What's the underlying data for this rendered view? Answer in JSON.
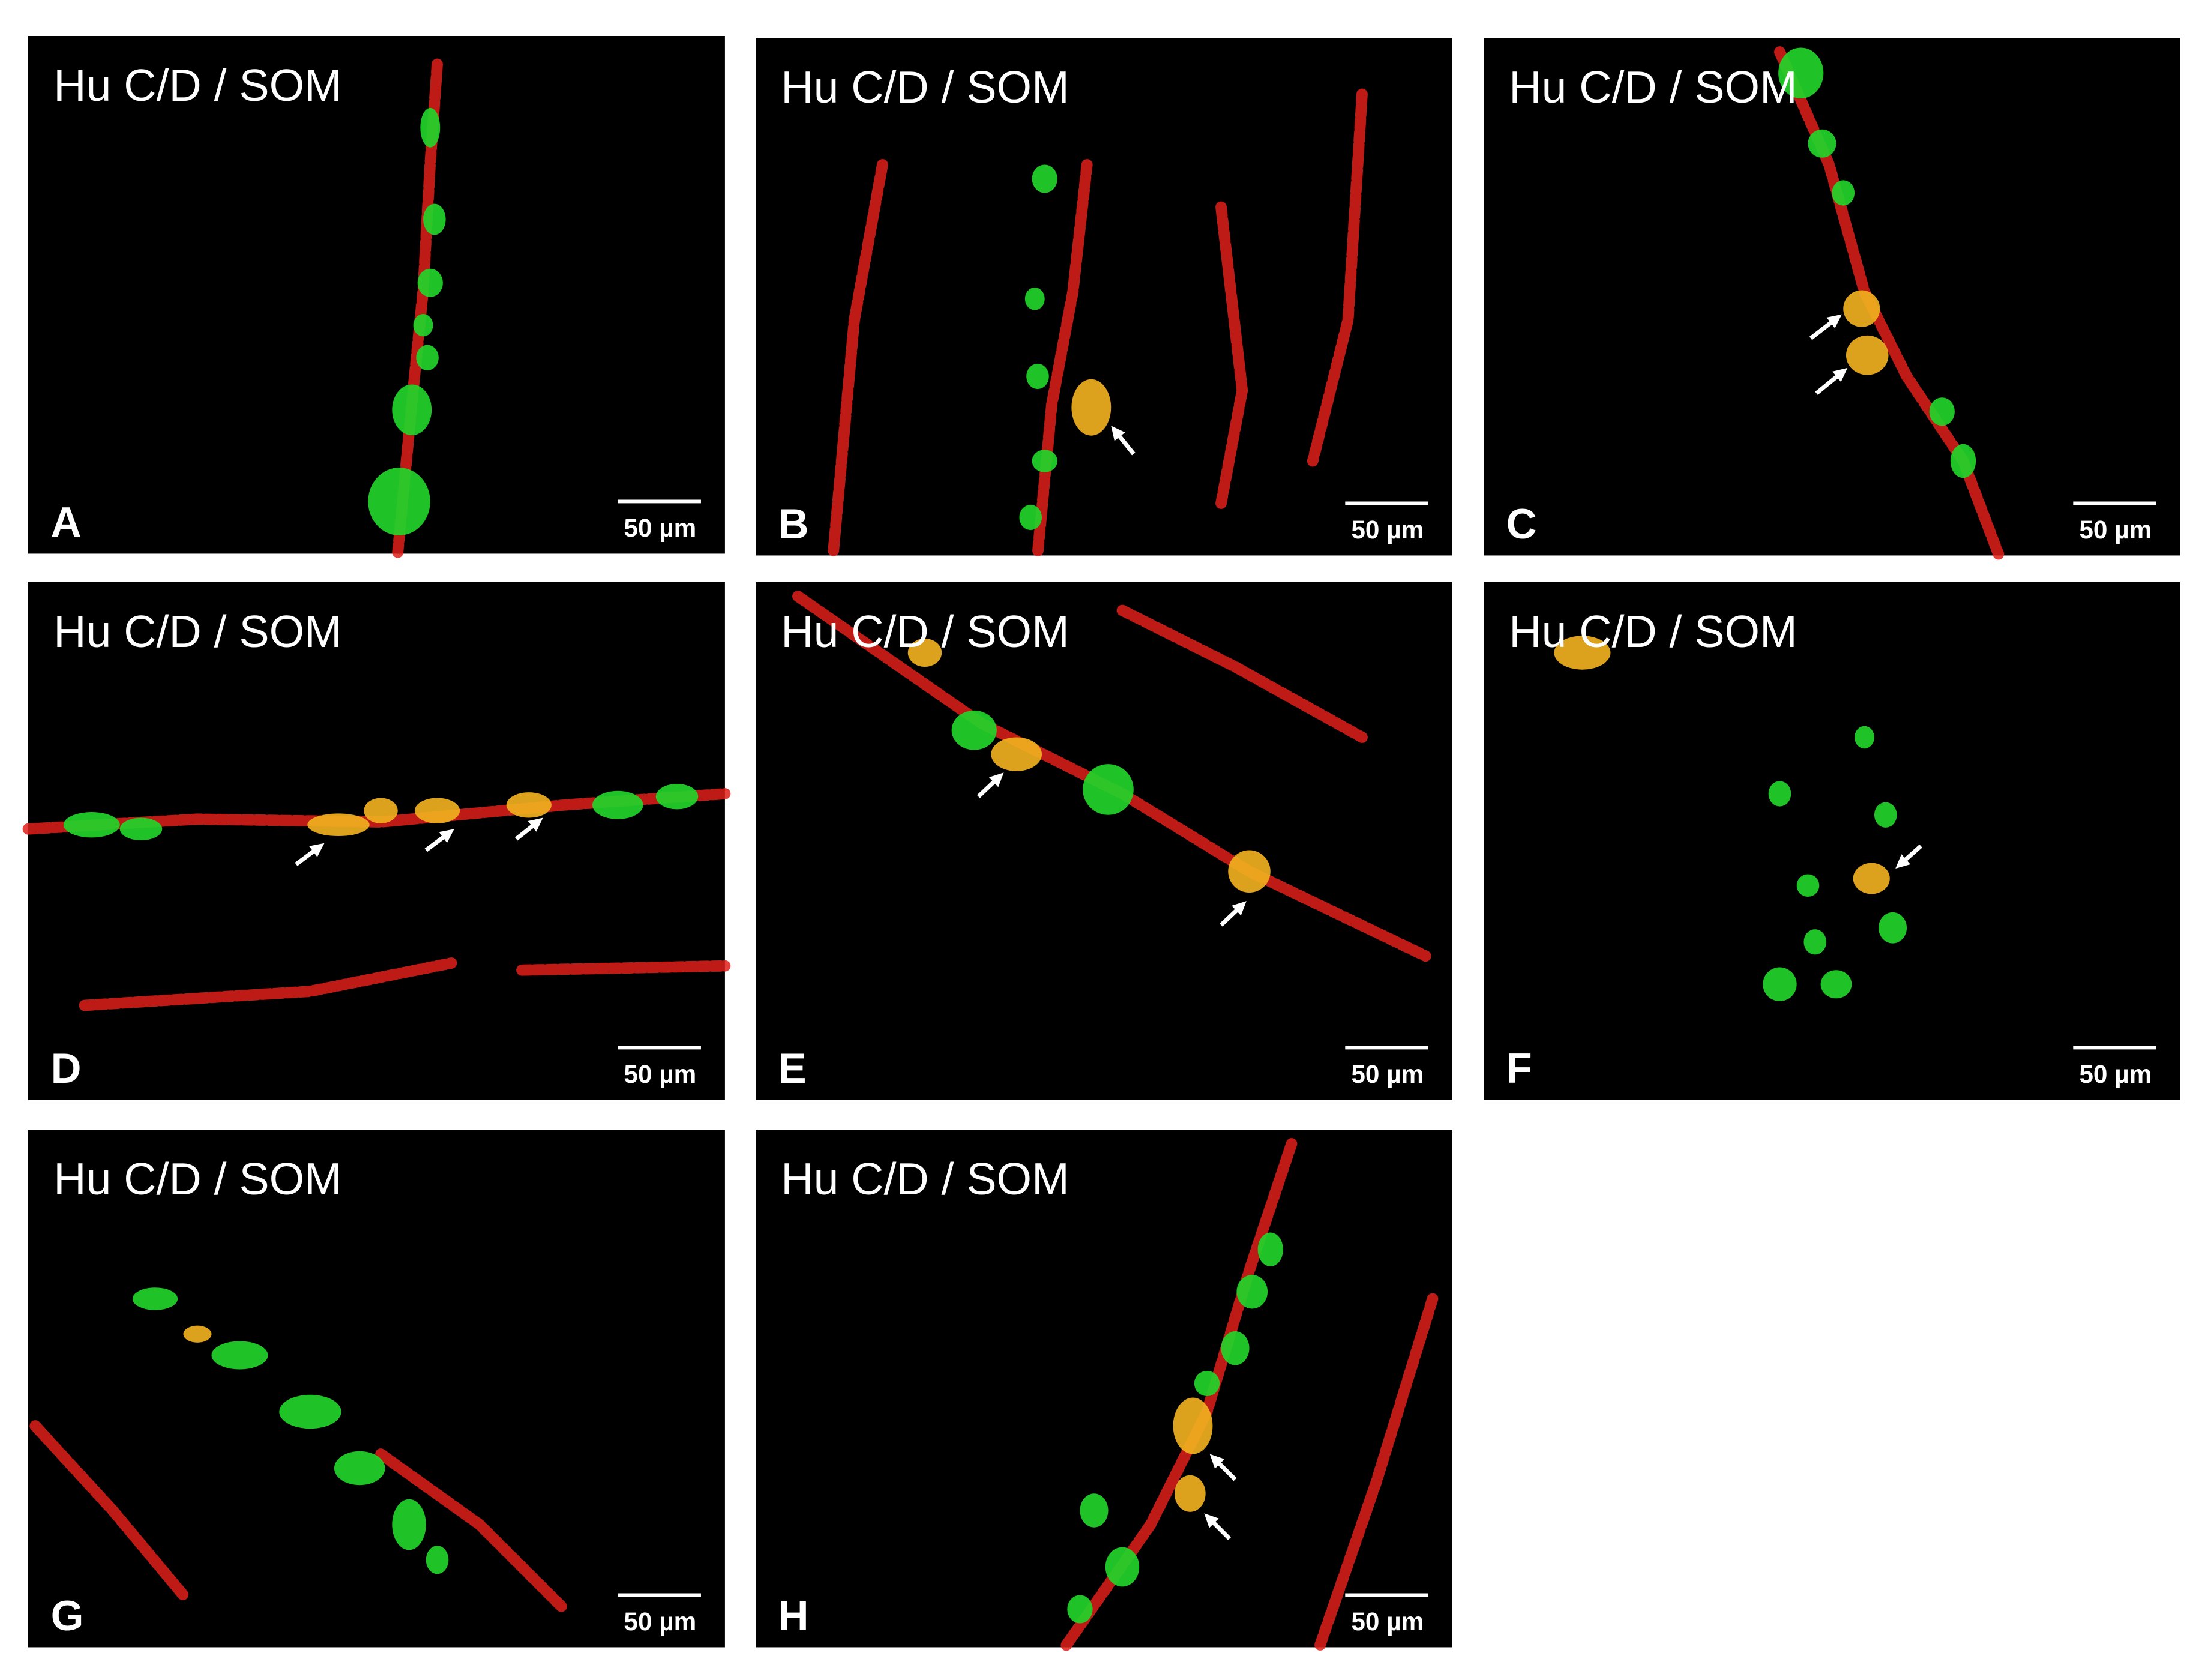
{
  "panels": [
    {
      "title": "Hu C/D / SOM",
      "letter": "A",
      "scale_label": "50 µm"
    },
    {
      "title": "Hu C/D / SOM",
      "letter": "B",
      "scale_label": "50 µm"
    },
    {
      "title": "Hu C/D / SOM",
      "letter": "C",
      "scale_label": "50 µm"
    },
    {
      "title": "Hu C/D / SOM",
      "letter": "D",
      "scale_label": "50 µm"
    },
    {
      "title": "Hu C/D / SOM",
      "letter": "E",
      "scale_label": "50 µm"
    },
    {
      "title": "Hu C/D / SOM",
      "letter": "F",
      "scale_label": "50 µm"
    },
    {
      "title": "Hu C/D / SOM",
      "letter": "G",
      "scale_label": "50 µm"
    },
    {
      "title": "Hu C/D / SOM",
      "letter": "H",
      "scale_label": "50 µm"
    }
  ]
}
